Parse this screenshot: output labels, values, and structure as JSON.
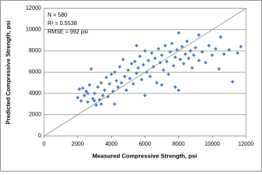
{
  "chart_data": {
    "type": "scatter",
    "xlabel": "Measured Compressive Strength, psi",
    "ylabel": "Predicted Compressive Strength, psi",
    "annotations": [
      "N = 580",
      "R² = 0.5538",
      "RMSE = 992 psi"
    ],
    "color": "#4f81bd",
    "grid": true,
    "xlim": [
      0,
      12000
    ],
    "ylim": [
      0,
      12000
    ],
    "xticks": [
      0,
      2000,
      4000,
      6000,
      8000,
      10000,
      12000
    ],
    "yticks": [
      0,
      2000,
      4000,
      6000,
      8000,
      10000,
      12000
    ],
    "x": [
      2000,
      2100,
      2200,
      2300,
      2400,
      2500,
      2600,
      2700,
      2800,
      2900,
      3000,
      3100,
      3200,
      3300,
      3400,
      3500,
      3600,
      3700,
      3800,
      3900,
      4000,
      4100,
      4200,
      4300,
      4400,
      4500,
      4600,
      4700,
      4800,
      4900,
      5000,
      5100,
      5200,
      5300,
      5400,
      5500,
      5600,
      5700,
      5800,
      5900,
      6000,
      6100,
      6200,
      6300,
      6400,
      6500,
      6600,
      6700,
      6800,
      6900,
      7000,
      7100,
      7200,
      7300,
      7400,
      7500,
      7600,
      7700,
      7800,
      7900,
      8000,
      8100,
      8200,
      8300,
      8400,
      8500,
      8600,
      8700,
      8800,
      8900,
      9000,
      9200,
      9400,
      9600,
      9800,
      10000,
      10200,
      10400,
      10500,
      10700,
      11000,
      11200,
      11500,
      11700,
      8000,
      9200,
      5500,
      6000,
      7000,
      4200,
      3000,
      2600,
      3400,
      7800
    ],
    "values": [
      3600,
      4400,
      3300,
      4500,
      3800,
      4200,
      3200,
      4800,
      6300,
      3500,
      4000,
      2900,
      4600,
      3400,
      5000,
      3800,
      4300,
      5500,
      3700,
      4900,
      5800,
      4200,
      6000,
      5200,
      4600,
      6500,
      5000,
      7200,
      5600,
      4300,
      6200,
      5400,
      6800,
      4900,
      7000,
      5900,
      6400,
      7500,
      5300,
      6700,
      8000,
      6000,
      7100,
      5600,
      7800,
      6500,
      7300,
      5000,
      8200,
      6900,
      7600,
      6200,
      8500,
      7000,
      5800,
      7900,
      8700,
      6600,
      7400,
      8100,
      4300,
      7200,
      8400,
      6800,
      7700,
      8900,
      7300,
      8000,
      6400,
      7600,
      8300,
      7100,
      7900,
      6900,
      8500,
      7600,
      8200,
      6300,
      9300,
      7700,
      8100,
      5100,
      7800,
      8400,
      9700,
      9500,
      8500,
      3800,
      4800,
      3000,
      3300,
      4000,
      3000,
      4600
    ]
  }
}
